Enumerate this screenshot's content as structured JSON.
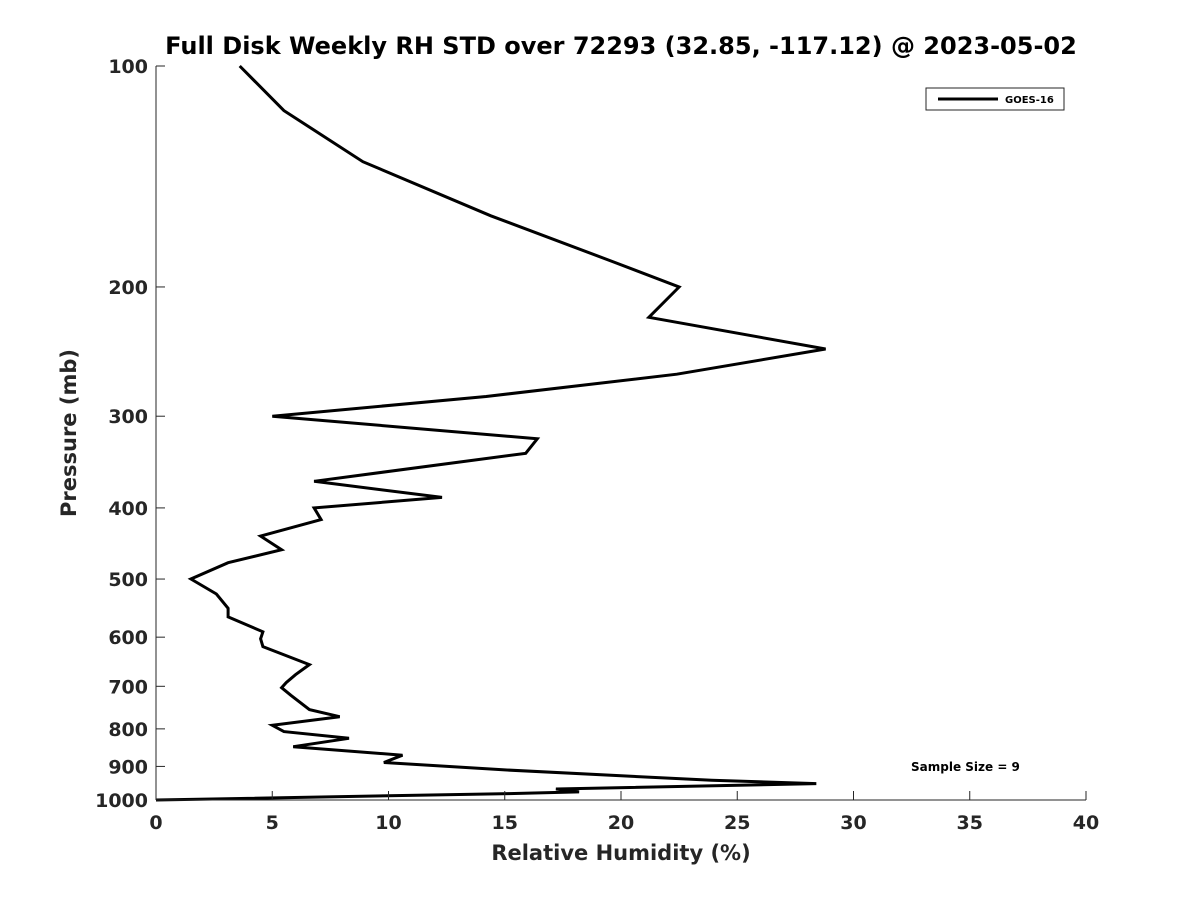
{
  "chart_data": {
    "type": "line",
    "title": "Full Disk Weekly RH STD over 72293 (32.85, -117.12) @ 2023-05-02",
    "xlabel": "Relative Humidity (%)",
    "ylabel": "Pressure (mb)",
    "xlim": [
      0,
      40
    ],
    "ylim": [
      100,
      1000
    ],
    "y_scale": "log",
    "y_reversed": true,
    "x_ticks": [
      "0",
      "5",
      "10",
      "15",
      "20",
      "25",
      "30",
      "35",
      "40"
    ],
    "y_ticks": [
      "100",
      "200",
      "300",
      "400",
      "500",
      "600",
      "700",
      "800",
      "900",
      "1000"
    ],
    "grid": false,
    "legend_position": "top-right",
    "annotation": "Sample Size = 9",
    "series": [
      {
        "name": "GOES-16",
        "color": "#000000",
        "x": [
          3.6,
          5.5,
          8.9,
          14.4,
          19.7,
          22.5,
          21.2,
          28.8,
          22.4,
          14.2,
          5.0,
          16.4,
          15.9,
          6.8,
          12.3,
          6.8,
          7.1,
          4.5,
          5.4,
          3.1,
          1.5,
          2.6,
          3.1,
          3.1,
          4.6,
          4.5,
          4.6,
          6.6,
          6.0,
          5.6,
          5.4,
          5.8,
          6.6,
          7.9,
          5.0,
          5.5,
          8.3,
          5.9,
          10.6,
          9.8,
          15.0,
          23.9,
          28.4,
          17.2,
          18.2,
          15.2,
          0.0
        ],
        "y": [
          100,
          115,
          135,
          160,
          185,
          200,
          220,
          243,
          263,
          282,
          300,
          322,
          337,
          368,
          387,
          400,
          415,
          437,
          456,
          475,
          500,
          524,
          548,
          563,
          590,
          603,
          618,
          654,
          675,
          692,
          703,
          720,
          753,
          770,
          791,
          807,
          824,
          846,
          869,
          889,
          910,
          940,
          950,
          966,
          975,
          980,
          1000
        ]
      }
    ]
  }
}
